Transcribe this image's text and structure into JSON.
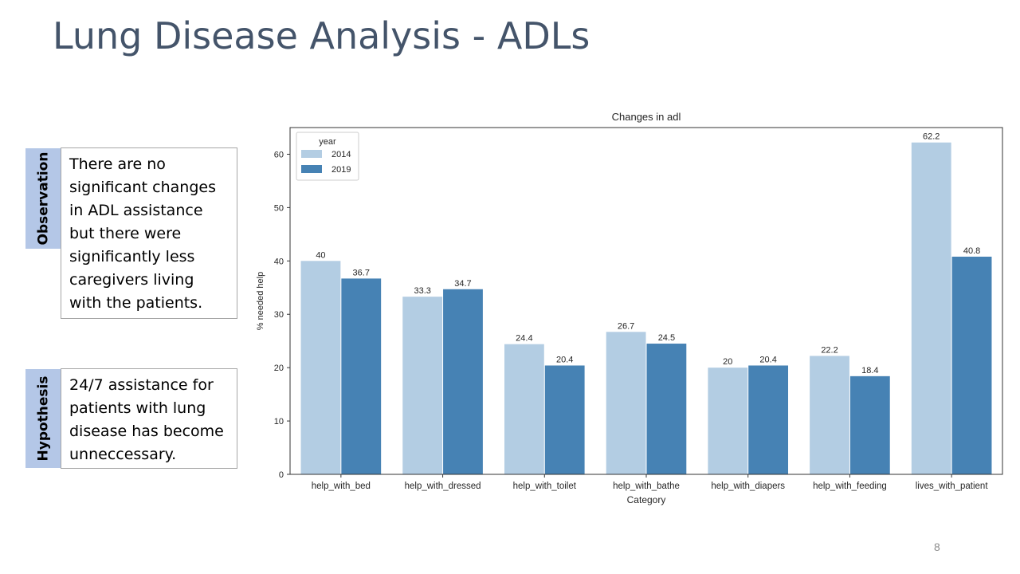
{
  "slide": {
    "title": "Lung Disease Analysis - ADLs",
    "page_number": "8"
  },
  "observation": {
    "tab_label": "Observation",
    "text": "There are no significant changes in ADL assistance but there were significantly less caregivers living with the patients."
  },
  "hypothesis": {
    "tab_label": "Hypothesis",
    "text": "24/7 assistance for patients with lung disease has become unneccessary."
  },
  "colors": {
    "title": "#44546a",
    "tab_background": "#b4c7e7",
    "series_2014": "#b3cde3",
    "series_2019": "#4682b4"
  },
  "chart_data": {
    "type": "bar",
    "title": "Changes in adl",
    "xlabel": "Category",
    "ylabel": "% needed help",
    "ylim": [
      0,
      65
    ],
    "yticks": [
      0,
      10,
      20,
      30,
      40,
      50,
      60
    ],
    "grid": false,
    "legend": {
      "title": "year",
      "position": "top-left"
    },
    "categories": [
      "help_with_bed",
      "help_with_dressed",
      "help_with_toilet",
      "help_with_bathe",
      "help_with_diapers",
      "help_with_feeding",
      "lives_with_patient"
    ],
    "series": [
      {
        "name": "2014",
        "values": [
          40,
          33.3,
          24.4,
          26.7,
          20,
          22.2,
          62.2
        ],
        "labels": [
          "40",
          "33.3",
          "24.4",
          "26.7",
          "20",
          "22.2",
          "62.2"
        ],
        "color": "#b3cde3"
      },
      {
        "name": "2019",
        "values": [
          36.7,
          34.7,
          20.4,
          24.5,
          20.4,
          18.4,
          40.8
        ],
        "labels": [
          "36.7",
          "34.7",
          "20.4",
          "24.5",
          "20.4",
          "18.4",
          "40.8"
        ],
        "color": "#4682b4"
      }
    ]
  }
}
